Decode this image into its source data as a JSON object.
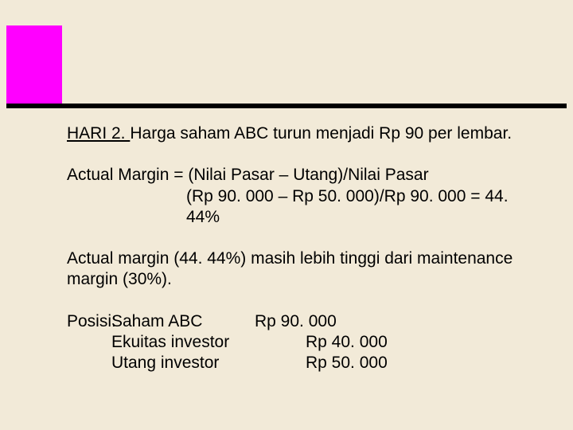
{
  "colors": {
    "background": "#f2ead8",
    "accent": "#ff00ff",
    "rule": "#000000",
    "text": "#000000"
  },
  "typography": {
    "font_family": "Arial",
    "font_size_pt": 16
  },
  "heading": {
    "underlined_label": "HARI 2. ",
    "rest": "Harga saham ABC turun menjadi Rp 90 per lembar."
  },
  "actual_margin": {
    "line1": "Actual Margin = (Nilai Pasar – Utang)/Nilai Pasar",
    "line2": "(Rp 90. 000 – Rp 50. 000)/Rp 90. 000 = 44. 44%"
  },
  "comparison": "Actual margin (44. 44%) masih lebih tinggi dari maintenance margin (30%).",
  "posisi": {
    "label": "Posisi:",
    "rows": [
      {
        "item": "Saham ABC",
        "value": "Rp 90. 000",
        "indent": false
      },
      {
        "item": "Ekuitas investor",
        "value": "Rp 40. 000",
        "indent": true
      },
      {
        "item": "Utang investor",
        "value": "Rp 50. 000",
        "indent": true
      }
    ]
  }
}
